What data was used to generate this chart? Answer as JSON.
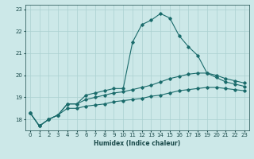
{
  "xlabel": "Humidex (Indice chaleur)",
  "bg_color": "#cce8e8",
  "line_color": "#1a6b6b",
  "grid_color": "#aad0d0",
  "x_values": [
    0,
    1,
    2,
    3,
    4,
    5,
    6,
    7,
    8,
    9,
    10,
    11,
    12,
    13,
    14,
    15,
    16,
    17,
    18,
    19,
    20,
    21,
    22,
    23
  ],
  "line1": [
    18.3,
    17.7,
    18.0,
    18.2,
    18.7,
    18.7,
    19.1,
    19.2,
    19.3,
    19.4,
    19.4,
    21.5,
    22.3,
    22.5,
    22.8,
    22.6,
    21.8,
    21.3,
    20.9,
    20.1,
    19.9,
    19.7,
    19.6,
    19.5
  ],
  "line2": [
    18.3,
    17.7,
    18.0,
    18.2,
    18.7,
    18.7,
    18.9,
    19.0,
    19.1,
    19.2,
    19.25,
    19.35,
    19.45,
    19.55,
    19.7,
    19.85,
    19.95,
    20.05,
    20.1,
    20.1,
    20.0,
    19.85,
    19.75,
    19.65
  ],
  "line3": [
    18.3,
    17.7,
    18.0,
    18.2,
    18.5,
    18.5,
    18.6,
    18.65,
    18.7,
    18.8,
    18.85,
    18.9,
    18.95,
    19.05,
    19.1,
    19.2,
    19.3,
    19.35,
    19.4,
    19.45,
    19.45,
    19.4,
    19.35,
    19.3
  ],
  "ylim": [
    17.5,
    23.2
  ],
  "xlim": [
    -0.5,
    23.5
  ],
  "yticks": [
    18,
    19,
    20,
    21,
    22,
    23
  ],
  "xticks": [
    0,
    1,
    2,
    3,
    4,
    5,
    6,
    7,
    8,
    9,
    10,
    11,
    12,
    13,
    14,
    15,
    16,
    17,
    18,
    19,
    20,
    21,
    22,
    23
  ]
}
